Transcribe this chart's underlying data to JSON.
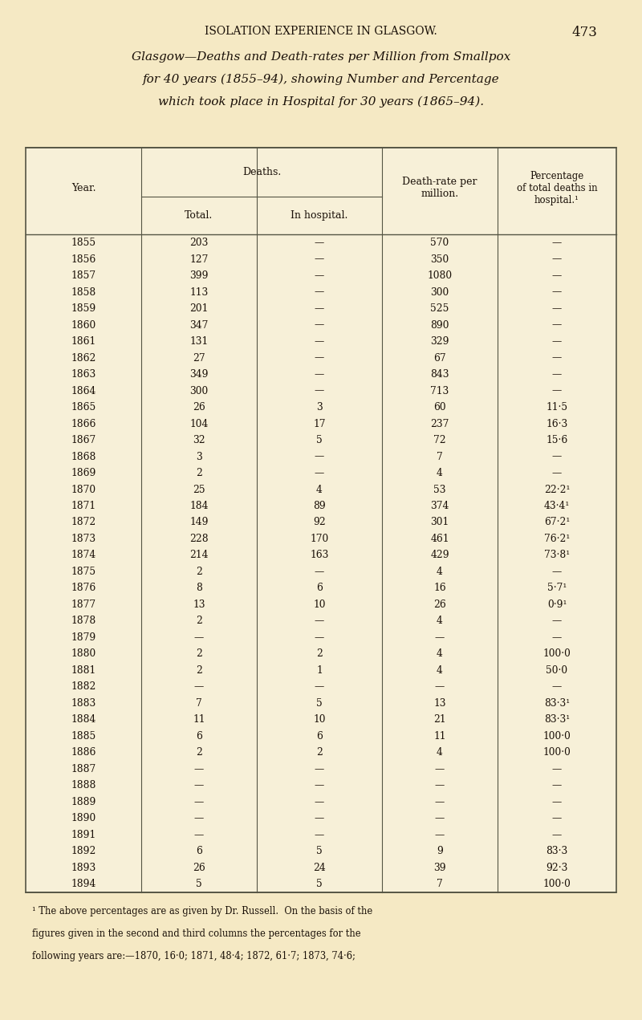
{
  "page_title": "ISOLATION EXPERIENCE IN GLASGOW.",
  "page_number": "473",
  "subtitle_lines": [
    "Glasgow—Deaths and Death-rates per Million from Smallpox",
    "for 40 years (1855–94), showing Number and Percentage",
    "which took place in Hospital for 30 years (1865–94)."
  ],
  "header_col1": "Year.",
  "header_deaths": "Deaths.",
  "header_total": "Total.",
  "header_hospital": "In hospital.",
  "header_deathrate": "Death-rate per\nmillion.",
  "header_percentage": "Percentage\nof total deaths in\nhospital.¹",
  "rows": [
    [
      "1855",
      "203",
      "—",
      "570",
      "—"
    ],
    [
      "1856",
      "127",
      "—",
      "350",
      "—"
    ],
    [
      "1857",
      "399",
      "—",
      "1080",
      "—"
    ],
    [
      "1858",
      "113",
      "—",
      "300",
      "—"
    ],
    [
      "1859",
      "201",
      "—",
      "525",
      "—"
    ],
    [
      "1860",
      "347",
      "—",
      "890",
      "—"
    ],
    [
      "1861",
      "131",
      "—",
      "329",
      "—"
    ],
    [
      "1862",
      "27",
      "—",
      "67",
      "—"
    ],
    [
      "1863",
      "349",
      "—",
      "843",
      "—"
    ],
    [
      "1864",
      "300",
      "—",
      "713",
      "—"
    ],
    [
      "1865",
      "26",
      "3",
      "60",
      "11·5"
    ],
    [
      "1866",
      "104",
      "17",
      "237",
      "16·3"
    ],
    [
      "1867",
      "32",
      "5",
      "72",
      "15·6"
    ],
    [
      "1868",
      "3",
      "—",
      "7",
      "—"
    ],
    [
      "1869",
      "2",
      "—",
      "4",
      "—"
    ],
    [
      "1870",
      "25",
      "4",
      "53",
      "22·2¹"
    ],
    [
      "1871",
      "184",
      "89",
      "374",
      "43·4¹"
    ],
    [
      "1872",
      "149",
      "92",
      "301",
      "67·2¹"
    ],
    [
      "1873",
      "228",
      "170",
      "461",
      "76·2¹"
    ],
    [
      "1874",
      "214",
      "163",
      "429",
      "73·8¹"
    ],
    [
      "1875",
      "2",
      "—",
      "4",
      "—"
    ],
    [
      "1876",
      "8",
      "6",
      "16",
      "5·7¹"
    ],
    [
      "1877",
      "13",
      "10",
      "26",
      "0·9¹"
    ],
    [
      "1878",
      "2",
      "—",
      "4",
      "—"
    ],
    [
      "1879",
      "—",
      "—",
      "—",
      "—"
    ],
    [
      "1880",
      "2",
      "2",
      "4",
      "100·0"
    ],
    [
      "1881",
      "2",
      "1",
      "4",
      "50·0"
    ],
    [
      "1882",
      "—",
      "—",
      "—",
      "—"
    ],
    [
      "1883",
      "7",
      "5",
      "13",
      "83·3¹"
    ],
    [
      "1884",
      "11",
      "10",
      "21",
      "83·3¹"
    ],
    [
      "1885",
      "6",
      "6",
      "11",
      "100·0"
    ],
    [
      "1886",
      "2",
      "2",
      "4",
      "100·0"
    ],
    [
      "1887",
      "—",
      "—",
      "—",
      "—"
    ],
    [
      "1888",
      "—",
      "—",
      "—",
      "—"
    ],
    [
      "1889",
      "—",
      "—",
      "—",
      "—"
    ],
    [
      "1890",
      "—",
      "—",
      "—",
      "—"
    ],
    [
      "1891",
      "—",
      "—",
      "—",
      "—"
    ],
    [
      "1892",
      "6",
      "5",
      "9",
      "83·3"
    ],
    [
      "1893",
      "26",
      "24",
      "39",
      "92·3"
    ],
    [
      "1894",
      "5",
      "5",
      "7",
      "100·0"
    ]
  ],
  "footnote_lines": [
    "¹ The above percentages are as given by Dr. Russell.  On the basis of the",
    "figures given in the second and third columns the percentages for the",
    "following years are:—1870, 16·0; 1871, 48·4; 1872, 61·7; 1873, 74·6;"
  ],
  "bg_color": "#f5e9c4",
  "table_bg": "#f7f0d8",
  "text_color": "#1a1008",
  "line_color": "#555544"
}
